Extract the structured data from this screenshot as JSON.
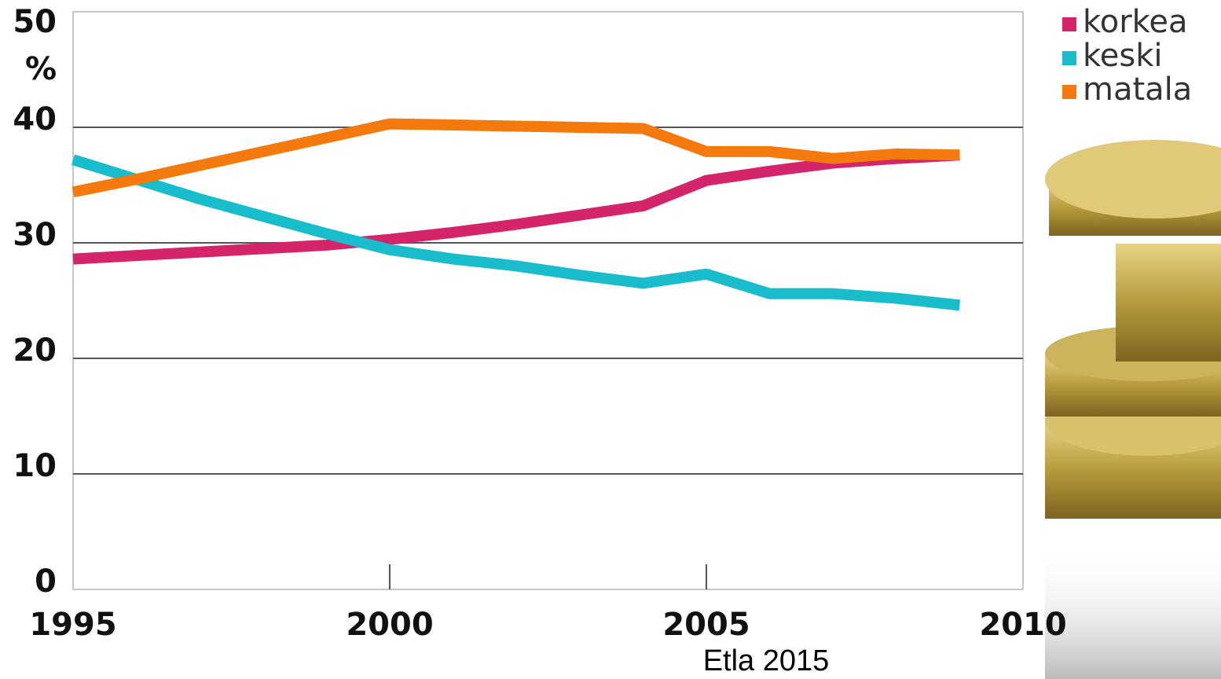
{
  "chart_data": {
    "type": "line",
    "y_unit": "%",
    "source": "Etla 2015",
    "x": [
      1995,
      1996,
      1997,
      1998,
      1999,
      2000,
      2001,
      2002,
      2003,
      2004,
      2005,
      2006,
      2007,
      2008,
      2009
    ],
    "series": [
      {
        "name": "korkea",
        "color": "#d4256a",
        "values": [
          28.6,
          28.9,
          29.2,
          29.5,
          29.8,
          30.3,
          30.9,
          31.6,
          32.4,
          33.2,
          35.4,
          36.2,
          36.9,
          37.3,
          37.6
        ]
      },
      {
        "name": "keski",
        "color": "#18bccb",
        "values": [
          37.2,
          35.5,
          33.8,
          32.3,
          30.8,
          29.4,
          28.6,
          28.0,
          27.2,
          26.5,
          27.3,
          25.6,
          25.6,
          25.2,
          24.6
        ]
      },
      {
        "name": "matala",
        "color": "#f47a0e",
        "values": [
          34.4,
          35.5,
          36.7,
          37.9,
          39.1,
          40.3,
          40.2,
          40.1,
          40.0,
          39.9,
          37.9,
          37.9,
          37.3,
          37.7,
          37.6
        ]
      }
    ],
    "xlim": [
      1995,
      2010
    ],
    "xticks": [
      1995,
      2000,
      2005,
      2010
    ],
    "ylim": [
      0,
      50
    ],
    "yticks": [
      0,
      10,
      20,
      30,
      40,
      50
    ],
    "grid": true
  }
}
